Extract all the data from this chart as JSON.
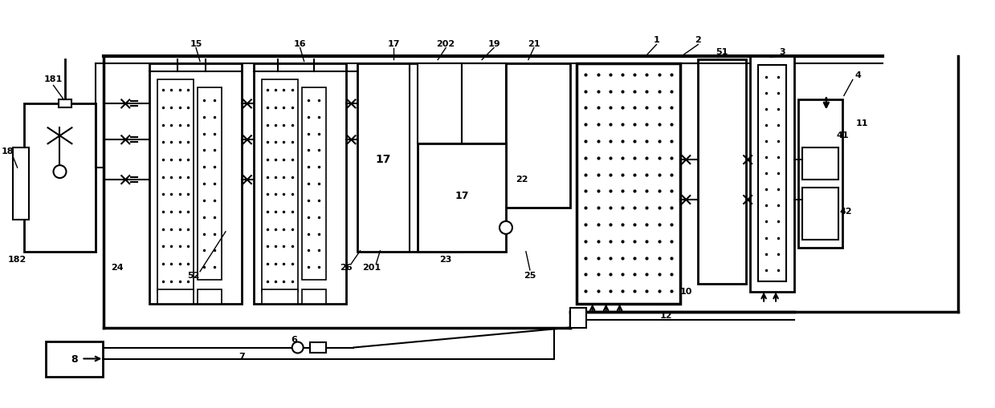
{
  "bg_color": "#ffffff",
  "lc": "#000000",
  "fig_width": 12.39,
  "fig_height": 5.09,
  "dpi": 100
}
